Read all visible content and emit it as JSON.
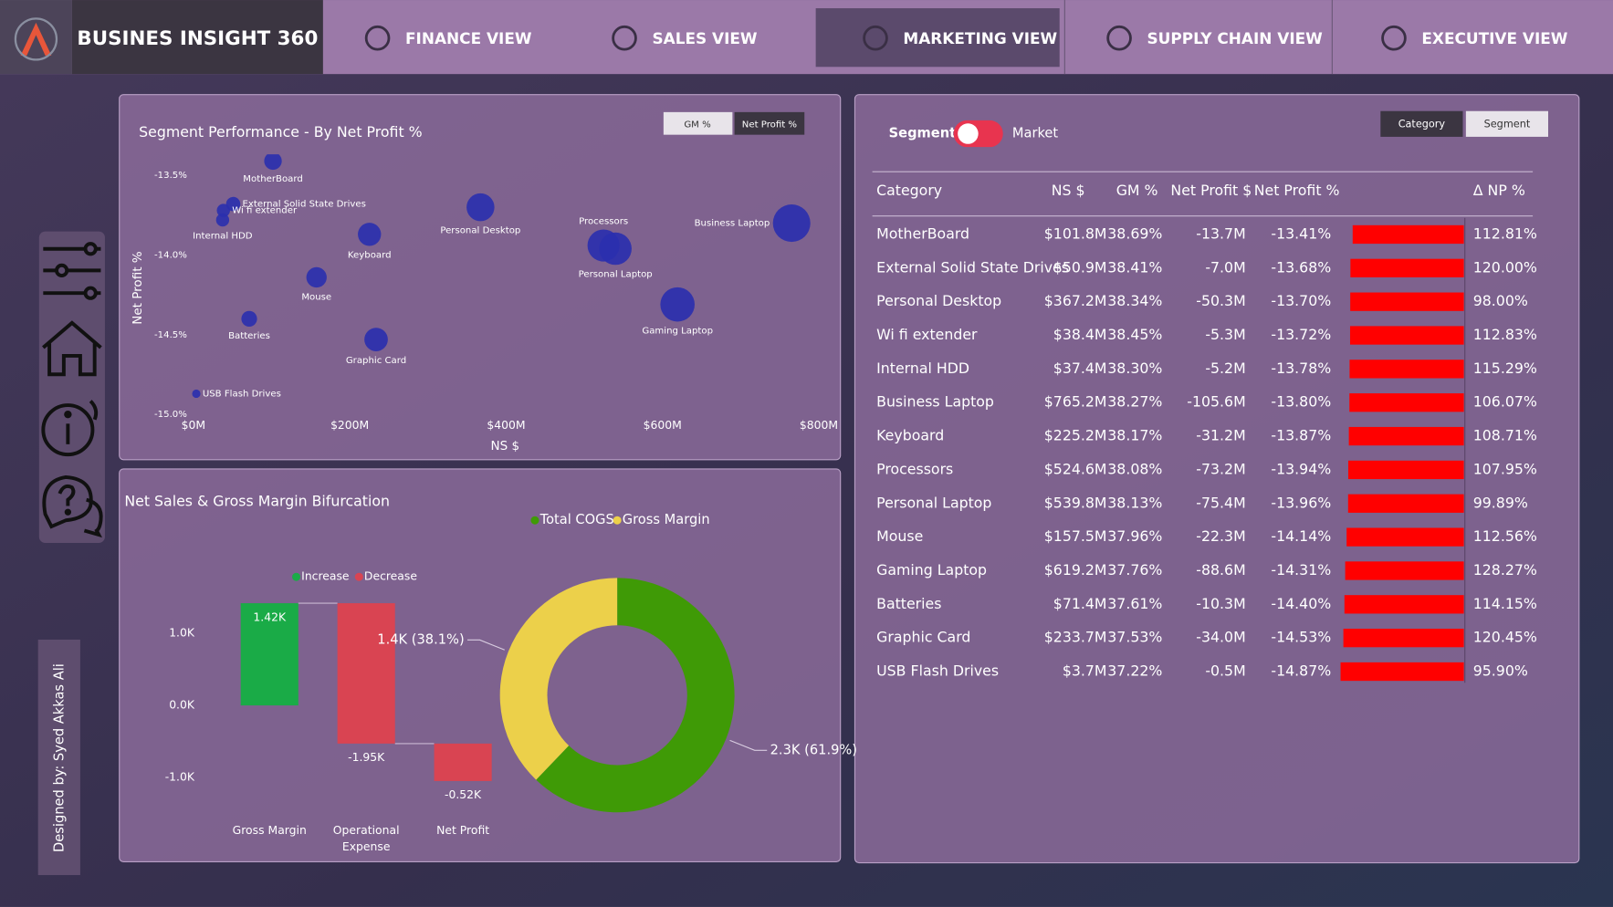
{
  "nav": {
    "title": "BUSINES INSIGHT 360",
    "tabs": [
      "FINANCE VIEW",
      "SALES VIEW",
      "MARKETING VIEW",
      "SUPPLY CHAIN VIEW",
      "EXECUTIVE VIEW"
    ],
    "active": 2
  },
  "credit": "Designed by: Syed Akkas Ali",
  "chart_data": [
    {
      "type": "scatter",
      "title": "Segment Performance - By Net Profit %",
      "buttons": [
        "GM %",
        "Net Profit %"
      ],
      "xlabel": "NS $",
      "ylabel": "Net Profit %",
      "categories": [
        "MotherBoard",
        "External Solid State Drives",
        "Personal Desktop",
        "Wi fi extender",
        "Internal HDD",
        "Business Laptop",
        "Keyboard",
        "Processors",
        "Personal Laptop",
        "Mouse",
        "Gaming Laptop",
        "Batteries",
        "Graphic Card",
        "USB Flash Drives"
      ],
      "x": [
        101.8,
        50.9,
        367.2,
        38.4,
        37.4,
        765.2,
        225.2,
        524.6,
        539.8,
        157.5,
        619.2,
        71.4,
        233.7,
        3.7
      ],
      "values": [
        -13.41,
        -13.68,
        -13.7,
        -13.72,
        -13.78,
        -13.8,
        -13.87,
        -13.94,
        -13.96,
        -14.14,
        -14.31,
        -14.4,
        -14.53,
        -14.87
      ],
      "color": "#2a2fae",
      "xlim": [
        0,
        800
      ],
      "xticks": [
        {
          "value": 0,
          "label": "$0M"
        },
        {
          "value": 200,
          "label": "$200M"
        },
        {
          "value": 400,
          "label": "$400M"
        },
        {
          "value": 600,
          "label": "$600M"
        },
        {
          "value": 800,
          "label": "$800M"
        }
      ],
      "ylim": [
        -15.0,
        -13.4
      ],
      "yticks": [
        {
          "value": -13.5,
          "label": "-13.5%"
        },
        {
          "value": -14.0,
          "label": "-14.0%"
        },
        {
          "value": -14.5,
          "label": "-14.5%"
        },
        {
          "value": -15.0,
          "label": "-15.0%"
        }
      ]
    },
    {
      "type": "waterfall",
      "title": "Net Sales & Gross Margin Bifurcation",
      "categories": [
        "Gross Margin",
        "Operational Expense",
        "Net Profit"
      ],
      "values": [
        1.42,
        -1.95,
        -0.52
      ],
      "value_labels": [
        "1.42K",
        "-1.95K",
        "-0.52K"
      ],
      "legend": [
        {
          "name": "Increase",
          "color": "#1aab47"
        },
        {
          "name": "Decrease",
          "color": "#d94452"
        }
      ],
      "ylim": [
        -1.6,
        1.8
      ],
      "yticks": [
        {
          "value": 1,
          "label": "1.0K"
        },
        {
          "value": 0,
          "label": "0.0K"
        },
        {
          "value": -1,
          "label": "-1.0K"
        }
      ]
    },
    {
      "type": "donut",
      "categories": [
        "Total COGS",
        "Gross Margin"
      ],
      "values": [
        2.3,
        1.4
      ],
      "value_labels": [
        "2.3K (61.9%)",
        "1.4K (38.1%)"
      ],
      "colors": [
        "#3f9a06",
        "#ecd04a"
      ]
    }
  ],
  "table_panel": {
    "toggle": [
      "Segment",
      "Market"
    ],
    "buttons": [
      "Category",
      "Segment"
    ],
    "columns": [
      "Category",
      "NS $",
      "GM %",
      "Net Profit $",
      "Net Profit %",
      "Δ NP %"
    ],
    "bar_color": "#ff0000",
    "rows": [
      [
        "MotherBoard",
        "$101.8M",
        "38.69%",
        "-13.7M",
        "-13.41%",
        "112.81%"
      ],
      [
        "External Solid State Drives",
        "$50.9M",
        "38.41%",
        "-7.0M",
        "-13.68%",
        "120.00%"
      ],
      [
        "Personal Desktop",
        "$367.2M",
        "38.34%",
        "-50.3M",
        "-13.70%",
        "98.00%"
      ],
      [
        "Wi fi extender",
        "$38.4M",
        "38.45%",
        "-5.3M",
        "-13.72%",
        "112.83%"
      ],
      [
        "Internal HDD",
        "$37.4M",
        "38.30%",
        "-5.2M",
        "-13.78%",
        "115.29%"
      ],
      [
        "Business Laptop",
        "$765.2M",
        "38.27%",
        "-105.6M",
        "-13.80%",
        "106.07%"
      ],
      [
        "Keyboard",
        "$225.2M",
        "38.17%",
        "-31.2M",
        "-13.87%",
        "108.71%"
      ],
      [
        "Processors",
        "$524.6M",
        "38.08%",
        "-73.2M",
        "-13.94%",
        "107.95%"
      ],
      [
        "Personal Laptop",
        "$539.8M",
        "38.13%",
        "-75.4M",
        "-13.96%",
        "99.89%"
      ],
      [
        "Mouse",
        "$157.5M",
        "37.96%",
        "-22.3M",
        "-14.14%",
        "112.56%"
      ],
      [
        "Gaming Laptop",
        "$619.2M",
        "37.76%",
        "-88.6M",
        "-14.31%",
        "128.27%"
      ],
      [
        "Batteries",
        "$71.4M",
        "37.61%",
        "-10.3M",
        "-14.40%",
        "114.15%"
      ],
      [
        "Graphic Card",
        "$233.7M",
        "37.53%",
        "-34.0M",
        "-14.53%",
        "120.45%"
      ],
      [
        "USB Flash Drives",
        "$3.7M",
        "37.22%",
        "-0.5M",
        "-14.87%",
        "95.90%"
      ]
    ]
  }
}
